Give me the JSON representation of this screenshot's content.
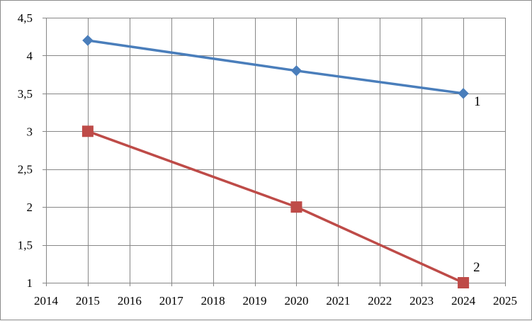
{
  "chart_data": {
    "type": "line",
    "title": "",
    "xlabel": "",
    "ylabel": "",
    "xlim": [
      2014,
      2025
    ],
    "ylim": [
      1,
      4.5
    ],
    "x_ticks": [
      2014,
      2015,
      2016,
      2017,
      2018,
      2019,
      2020,
      2021,
      2022,
      2023,
      2024,
      2025
    ],
    "x_tick_labels": [
      "2014",
      "2015",
      "2016",
      "2017",
      "2018",
      "2019",
      "2020",
      "2021",
      "2022",
      "2023",
      "2024",
      "2025"
    ],
    "y_ticks": [
      1,
      1.5,
      2,
      2.5,
      3,
      3.5,
      4,
      4.5
    ],
    "y_tick_labels": [
      "1",
      "1,5",
      "2",
      "2,5",
      "3",
      "3,5",
      "4",
      "4,5"
    ],
    "grid": true,
    "legend": "none",
    "series": [
      {
        "label": "1",
        "color": "#4a7ebb",
        "marker": "diamond",
        "x": [
          2015,
          2020,
          2024
        ],
        "y": [
          4.2,
          3.8,
          3.5
        ]
      },
      {
        "label": "2",
        "color": "#be4b48",
        "marker": "square",
        "x": [
          2015,
          2020,
          2024
        ],
        "y": [
          3.0,
          2.0,
          1.0
        ]
      }
    ]
  }
}
